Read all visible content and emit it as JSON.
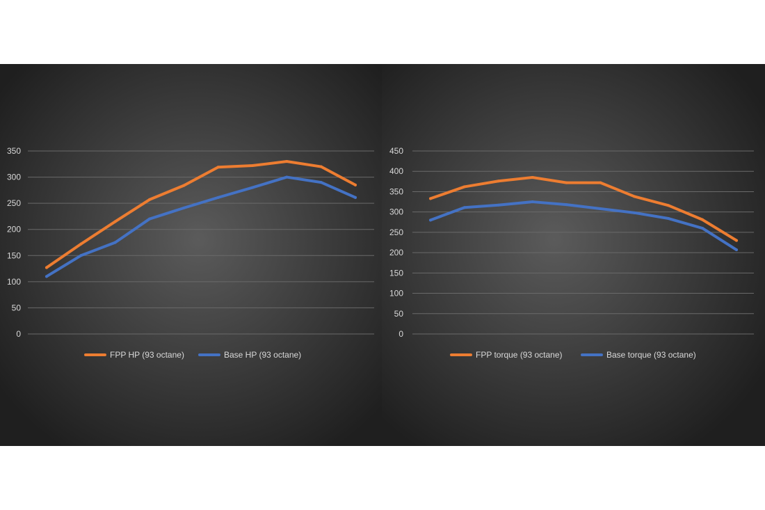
{
  "chart_data": [
    {
      "type": "line",
      "title": "",
      "xlabel": "",
      "ylabel": "",
      "ylim": [
        0,
        350
      ],
      "yticks": [
        "0",
        "50",
        "100",
        "150",
        "200",
        "250",
        "300",
        "350"
      ],
      "grid": true,
      "legend_position": "bottom",
      "series": [
        {
          "name": "FPP HP (93 octane)",
          "color": "#ed7d31",
          "values": [
            127,
            172,
            215,
            257,
            284,
            319,
            322,
            330,
            320,
            285
          ]
        },
        {
          "name": "Base HP (93 octane)",
          "color": "#4472c4",
          "values": [
            110,
            150,
            175,
            220,
            241,
            261,
            280,
            300,
            290,
            261
          ]
        }
      ]
    },
    {
      "type": "line",
      "title": "",
      "xlabel": "",
      "ylabel": "",
      "ylim": [
        0,
        450
      ],
      "yticks": [
        "0",
        "50",
        "100",
        "150",
        "200",
        "250",
        "300",
        "350",
        "400",
        "450"
      ],
      "grid": true,
      "legend_position": "bottom",
      "series": [
        {
          "name": "FPP torque (93 octane)",
          "color": "#ed7d31",
          "values": [
            333,
            362,
            376,
            385,
            372,
            372,
            338,
            316,
            281,
            230
          ]
        },
        {
          "name": "Base torque (93 octane)",
          "color": "#4472c4",
          "values": [
            280,
            311,
            317,
            325,
            318,
            308,
            298,
            284,
            260,
            207
          ]
        }
      ]
    }
  ]
}
